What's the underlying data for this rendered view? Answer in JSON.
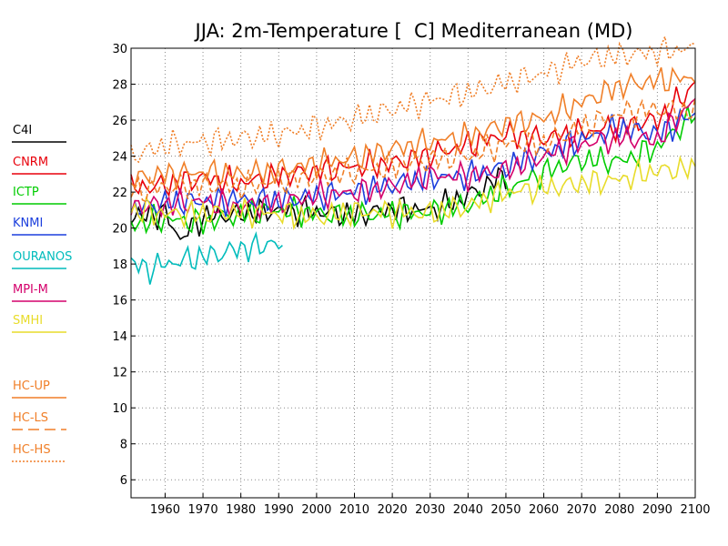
{
  "chart_data": {
    "type": "line",
    "title": "JJA: 2m-Temperature [  C] Mediterranean (MD)",
    "xlim": [
      1951,
      2100
    ],
    "ylim": [
      5,
      30
    ],
    "x_ticks": [
      1960,
      1970,
      1980,
      1990,
      2000,
      2010,
      2020,
      2030,
      2040,
      2050,
      2060,
      2070,
      2080,
      2090,
      2100
    ],
    "y_ticks": [
      6,
      8,
      10,
      12,
      14,
      16,
      18,
      20,
      22,
      24,
      26,
      28,
      30
    ],
    "grid": true,
    "legend_placement": "left",
    "series": [
      {
        "name": "C4I",
        "color": "#000000",
        "dash": "solid",
        "x": [
          1951,
          1960,
          1964,
          1970,
          1980,
          1990,
          2000,
          2010,
          2020,
          2030,
          2040,
          2050
        ],
        "y": [
          20.6,
          20.8,
          19.4,
          20.6,
          20.8,
          21.0,
          20.9,
          20.7,
          21.1,
          21.0,
          21.8,
          23.0
        ]
      },
      {
        "name": "CNRM",
        "color": "#e8000b",
        "dash": "solid",
        "x": [
          1951,
          1960,
          1970,
          1980,
          1990,
          2000,
          2010,
          2020,
          2030,
          2040,
          2050,
          2060,
          2070,
          2080,
          2090,
          2100
        ],
        "y": [
          22.2,
          22.4,
          22.8,
          22.5,
          22.9,
          23.2,
          23.4,
          23.6,
          24.1,
          24.6,
          25.2,
          25.0,
          25.3,
          25.7,
          26.0,
          28.0
        ]
      },
      {
        "name": "ICTP",
        "color": "#00cc00",
        "dash": "solid",
        "x": [
          1951,
          1960,
          1970,
          1980,
          1990,
          2000,
          2010,
          2020,
          2030,
          2040,
          2050,
          2060,
          2070,
          2080,
          2090,
          2100
        ],
        "y": [
          20.2,
          20.5,
          20.3,
          20.8,
          21.0,
          20.8,
          20.7,
          20.8,
          20.9,
          21.3,
          22.2,
          23.1,
          23.8,
          23.7,
          24.5,
          26.4
        ]
      },
      {
        "name": "KNMI",
        "color": "#1c3fdd",
        "dash": "solid",
        "x": [
          1951,
          1960,
          1970,
          1980,
          1990,
          2000,
          2010,
          2020,
          2030,
          2040,
          2050,
          2060,
          2070,
          2080,
          2090,
          2100
        ],
        "y": [
          21.0,
          21.4,
          21.5,
          21.6,
          21.5,
          21.8,
          22.0,
          22.4,
          22.8,
          22.9,
          23.4,
          24.2,
          24.9,
          25.6,
          25.2,
          26.4
        ]
      },
      {
        "name": "OURANOS",
        "color": "#00bcbc",
        "dash": "solid",
        "x": [
          1951,
          1955,
          1960,
          1965,
          1970,
          1975,
          1980,
          1985,
          1988,
          1991
        ],
        "y": [
          18.1,
          17.7,
          18.0,
          18.2,
          18.4,
          18.6,
          18.9,
          18.9,
          19.3,
          18.8
        ]
      },
      {
        "name": "MPI-M",
        "color": "#d4006b",
        "dash": "solid",
        "x": [
          1951,
          1960,
          1970,
          1980,
          1990,
          2000,
          2010,
          2020,
          2030,
          2040,
          2050,
          2060,
          2070,
          2080,
          2090,
          2100
        ],
        "y": [
          21.2,
          21.3,
          21.5,
          21.2,
          21.4,
          21.8,
          22.0,
          22.3,
          22.9,
          22.9,
          23.2,
          24.0,
          24.7,
          25.0,
          24.9,
          27.2
        ]
      },
      {
        "name": "SMHI",
        "color": "#e8dc2a",
        "dash": "solid",
        "x": [
          1951,
          1960,
          1970,
          1980,
          1990,
          2000,
          2010,
          2020,
          2030,
          2040,
          2050,
          2060,
          2070,
          2080,
          2090,
          2100
        ],
        "y": [
          21.0,
          20.8,
          20.8,
          20.9,
          20.8,
          20.6,
          20.9,
          20.9,
          20.8,
          21.2,
          22.0,
          22.2,
          22.5,
          22.7,
          23.2,
          23.3
        ]
      },
      {
        "name": "HC-UP",
        "color": "#f07f28",
        "dash": "solid",
        "x": [
          1951,
          1960,
          1970,
          1980,
          1990,
          2000,
          2010,
          2020,
          2030,
          2040,
          2050,
          2060,
          2070,
          2080,
          2090,
          2100
        ],
        "y": [
          22.7,
          23.0,
          23.1,
          23.0,
          23.2,
          23.6,
          23.9,
          24.4,
          24.8,
          25.1,
          25.8,
          26.1,
          27.0,
          27.9,
          28.2,
          28.4
        ]
      },
      {
        "name": "HC-LS",
        "color": "#f07f28",
        "dash": "dashed",
        "x": [
          1951,
          1960,
          1970,
          1980,
          1990,
          2000,
          2010,
          2020,
          2030,
          2040,
          2050,
          2060,
          2070,
          2080,
          2090,
          2100
        ],
        "y": [
          22.0,
          22.3,
          22.4,
          22.3,
          22.6,
          22.9,
          23.1,
          23.4,
          23.8,
          24.0,
          24.7,
          24.7,
          25.6,
          26.4,
          26.6,
          26.5
        ]
      },
      {
        "name": "HC-HS",
        "color": "#f07f28",
        "dash": "dotted",
        "x": [
          1951,
          1960,
          1970,
          1980,
          1990,
          2000,
          2010,
          2020,
          2030,
          2040,
          2050,
          2060,
          2070,
          2080,
          2090,
          2100
        ],
        "y": [
          24.0,
          24.6,
          24.8,
          25.0,
          25.2,
          25.6,
          26.1,
          26.6,
          27.1,
          27.5,
          28.1,
          28.6,
          29.3,
          29.6,
          29.8,
          30.0
        ]
      }
    ]
  }
}
